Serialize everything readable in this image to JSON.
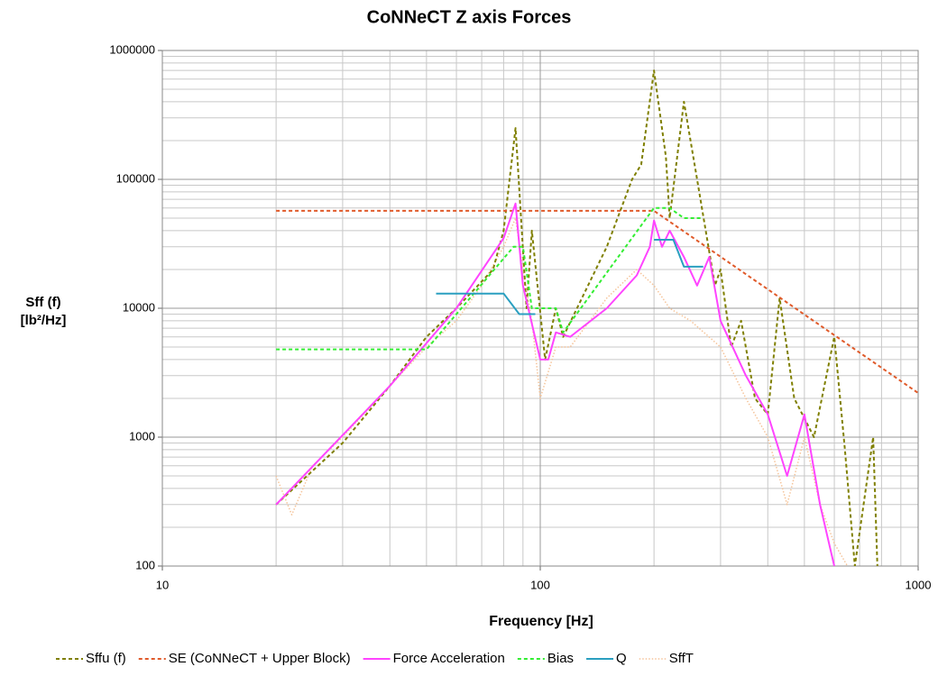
{
  "chart_data": {
    "type": "line",
    "title": "CoNNeCT Z axis Forces",
    "xlabel": "Frequency [Hz]",
    "ylabel": [
      "Sff  (f)",
      "[lb²/Hz]"
    ],
    "xscale": "log",
    "yscale": "log",
    "grid": true,
    "minor_grid": true,
    "legend": "bottom",
    "xlim": [
      10,
      1000
    ],
    "xticks": [
      10,
      100,
      1000
    ],
    "ylim": [
      100,
      1000000
    ],
    "yticks": [
      100,
      1000,
      10000,
      100000,
      1000000
    ],
    "series": [
      {
        "name": "Sffu (f)",
        "color": "#7f7f00",
        "dash": "dashed",
        "x": [
          20,
          30,
          40,
          50,
          60,
          75,
          80,
          86,
          92,
          95,
          103,
          110,
          115,
          150,
          175,
          185,
          200,
          215,
          220,
          240,
          260,
          290,
          300,
          320,
          340,
          370,
          400,
          430,
          470,
          530,
          600,
          640,
          680,
          760,
          780
        ],
        "values": [
          300,
          900,
          2500,
          6000,
          10000,
          20000,
          40000,
          250000,
          10000,
          40000,
          4000,
          10000,
          6000,
          30000,
          100000,
          130000,
          700000,
          150000,
          50000,
          400000,
          100000,
          15000,
          20000,
          5000,
          8000,
          2000,
          1500,
          12000,
          2000,
          1000,
          6000,
          800,
          100,
          1000,
          100
        ]
      },
      {
        "name": "SE (CoNNeCT + Upper Block)",
        "color": "#e05a2a",
        "dash": "dashed",
        "x": [
          20,
          200,
          1000
        ],
        "values": [
          57000,
          57000,
          2200
        ]
      },
      {
        "name": "Force Acceleration",
        "color": "#ff44ff",
        "dash": "solid",
        "x": [
          20,
          40,
          60,
          80,
          86,
          90,
          100,
          105,
          110,
          120,
          150,
          180,
          195,
          200,
          210,
          220,
          240,
          260,
          280,
          300,
          350,
          400,
          450,
          500,
          550,
          600
        ],
        "values": [
          300,
          2500,
          10000,
          35000,
          65000,
          15000,
          4000,
          4000,
          6500,
          6000,
          10000,
          18000,
          30000,
          48000,
          30000,
          40000,
          25000,
          15000,
          25000,
          8000,
          3000,
          1500,
          500,
          1500,
          300,
          100
        ]
      },
      {
        "name": "Bias",
        "color": "#33ee33",
        "dash": "dashed",
        "x": [
          20,
          50,
          85,
          90,
          95,
          110,
          115,
          200,
          220,
          240,
          270
        ],
        "values": [
          4800,
          4800,
          30000,
          30000,
          10000,
          10000,
          6500,
          60000,
          60000,
          50000,
          50000
        ]
      },
      {
        "name": "Q",
        "color": "#2a9fc0",
        "dash": "solid",
        "x": [
          53,
          80,
          88,
          97,
          null,
          200,
          225,
          240,
          270
        ],
        "values": [
          13000,
          13000,
          9000,
          9000,
          null,
          34000,
          34000,
          21000,
          21000
        ]
      },
      {
        "name": "SffT",
        "color": "#f5c49a",
        "dash": "dotted",
        "x": [
          20,
          22,
          25,
          30,
          40,
          50,
          60,
          70,
          80,
          86,
          90,
          95,
          100,
          110,
          120,
          150,
          180,
          200,
          220,
          250,
          300,
          350,
          400,
          450,
          500,
          550,
          600,
          650
        ],
        "values": [
          500,
          250,
          600,
          1000,
          2500,
          5000,
          8000,
          15000,
          30000,
          50000,
          20000,
          8000,
          2000,
          5000,
          5000,
          12000,
          20000,
          15000,
          10000,
          8000,
          5000,
          2000,
          1000,
          300,
          1000,
          300,
          150,
          100
        ]
      }
    ]
  }
}
